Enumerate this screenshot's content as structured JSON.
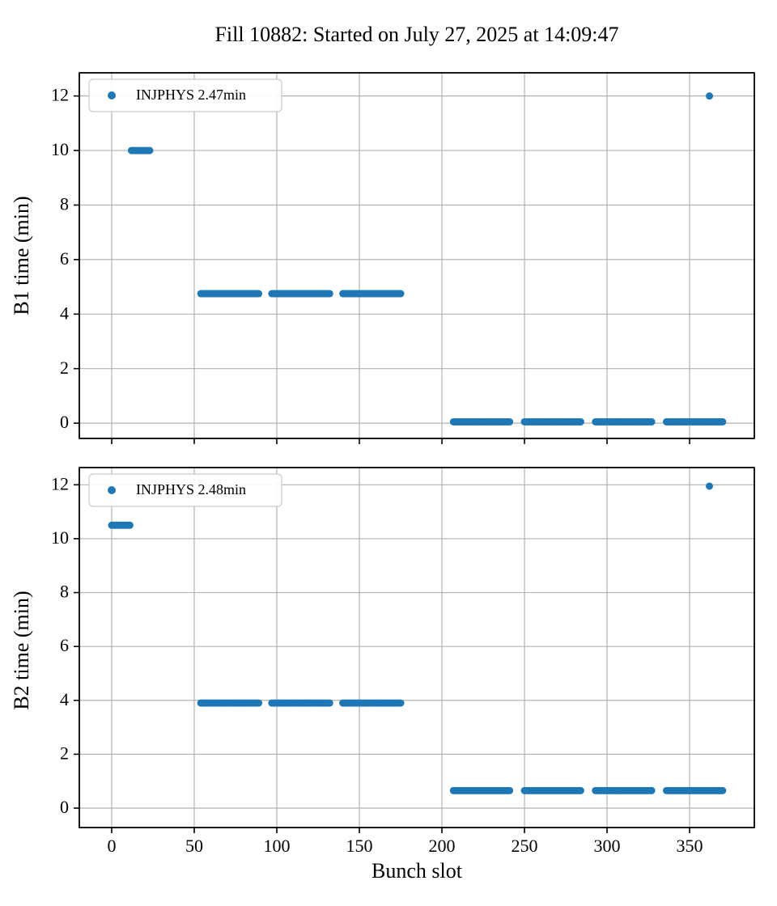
{
  "title": "Fill 10882: Started on July 27, 2025 at 14:09:47",
  "xlabel": "Bunch slot",
  "colors": {
    "marker": "#1f77b4",
    "grid": "#b2b2b2",
    "spine": "#000000",
    "tick_label": "#000000",
    "legend_border": "#cccccc",
    "background": "#ffffff"
  },
  "chart_data": [
    {
      "type": "scatter",
      "panel": "top",
      "ylabel": "B1 time (min)",
      "legend": "INJPHYS 2.47min",
      "legend_position": "upper left",
      "grid": true,
      "xlim": [
        -19.6,
        389.2
      ],
      "ylim": [
        -0.56,
        12.85
      ],
      "xticks": [
        0,
        50,
        100,
        150,
        200,
        250,
        300,
        350
      ],
      "yticks": [
        0,
        2,
        4,
        6,
        8,
        10,
        12
      ],
      "show_x_tick_labels": false,
      "segments": [
        {
          "slot_start": 12,
          "slot_end": 23,
          "time_min": 10.0
        },
        {
          "slot_start": 54,
          "slot_end": 89,
          "time_min": 4.75
        },
        {
          "slot_start": 97,
          "slot_end": 132,
          "time_min": 4.75
        },
        {
          "slot_start": 140,
          "slot_end": 175,
          "time_min": 4.75
        },
        {
          "slot_start": 207,
          "slot_end": 241,
          "time_min": 0.05
        },
        {
          "slot_start": 250,
          "slot_end": 284,
          "time_min": 0.05
        },
        {
          "slot_start": 293,
          "slot_end": 327,
          "time_min": 0.05
        },
        {
          "slot_start": 336,
          "slot_end": 370,
          "time_min": 0.05
        }
      ],
      "outliers": [
        {
          "slot": 362,
          "time_min": 12.0
        }
      ]
    },
    {
      "type": "scatter",
      "panel": "bottom",
      "ylabel": "B2 time (min)",
      "legend": "INJPHYS 2.48min",
      "legend_position": "upper left",
      "grid": true,
      "xlim": [
        -19.6,
        389.2
      ],
      "ylim": [
        -0.72,
        12.64
      ],
      "xticks": [
        0,
        50,
        100,
        150,
        200,
        250,
        300,
        350
      ],
      "yticks": [
        0,
        2,
        4,
        6,
        8,
        10,
        12
      ],
      "show_x_tick_labels": true,
      "segments": [
        {
          "slot_start": 0,
          "slot_end": 11,
          "time_min": 10.5
        },
        {
          "slot_start": 54,
          "slot_end": 89,
          "time_min": 3.9
        },
        {
          "slot_start": 97,
          "slot_end": 132,
          "time_min": 3.9
        },
        {
          "slot_start": 140,
          "slot_end": 175,
          "time_min": 3.9
        },
        {
          "slot_start": 207,
          "slot_end": 241,
          "time_min": 0.65
        },
        {
          "slot_start": 250,
          "slot_end": 284,
          "time_min": 0.65
        },
        {
          "slot_start": 293,
          "slot_end": 327,
          "time_min": 0.65
        },
        {
          "slot_start": 336,
          "slot_end": 370,
          "time_min": 0.65
        }
      ],
      "outliers": [
        {
          "slot": 362,
          "time_min": 11.95
        }
      ]
    }
  ]
}
